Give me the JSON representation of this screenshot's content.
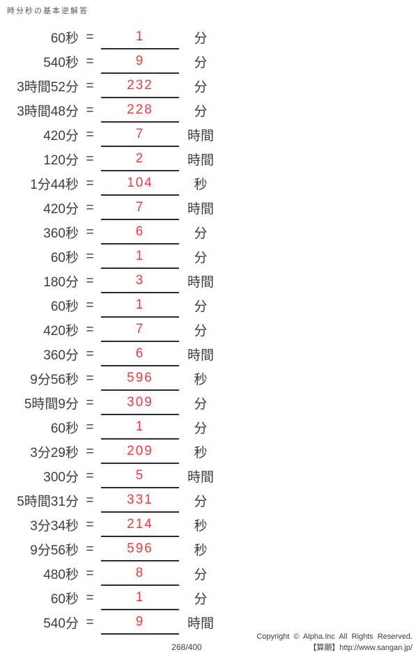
{
  "title": "時分秒の基本逆解答",
  "equals": "=",
  "problems": [
    {
      "q": "60秒",
      "a": "1",
      "u": "分"
    },
    {
      "q": "540秒",
      "a": "9",
      "u": "分"
    },
    {
      "q": "3時間52分",
      "a": "232",
      "u": "分"
    },
    {
      "q": "3時間48分",
      "a": "228",
      "u": "分"
    },
    {
      "q": "420分",
      "a": "7",
      "u": "時間"
    },
    {
      "q": "120分",
      "a": "2",
      "u": "時間"
    },
    {
      "q": "1分44秒",
      "a": "104",
      "u": "秒"
    },
    {
      "q": "420分",
      "a": "7",
      "u": "時間"
    },
    {
      "q": "360秒",
      "a": "6",
      "u": "分"
    },
    {
      "q": "60秒",
      "a": "1",
      "u": "分"
    },
    {
      "q": "180分",
      "a": "3",
      "u": "時間"
    },
    {
      "q": "60秒",
      "a": "1",
      "u": "分"
    },
    {
      "q": "420秒",
      "a": "7",
      "u": "分"
    },
    {
      "q": "360分",
      "a": "6",
      "u": "時間"
    },
    {
      "q": "9分56秒",
      "a": "596",
      "u": "秒"
    },
    {
      "q": "5時間9分",
      "a": "309",
      "u": "分"
    },
    {
      "q": "60秒",
      "a": "1",
      "u": "分"
    },
    {
      "q": "3分29秒",
      "a": "209",
      "u": "秒"
    },
    {
      "q": "300分",
      "a": "5",
      "u": "時間"
    },
    {
      "q": "5時間31分",
      "a": "331",
      "u": "分"
    },
    {
      "q": "3分34秒",
      "a": "214",
      "u": "秒"
    },
    {
      "q": "9分56秒",
      "a": "596",
      "u": "秒"
    },
    {
      "q": "480秒",
      "a": "8",
      "u": "分"
    },
    {
      "q": "60秒",
      "a": "1",
      "u": "分"
    },
    {
      "q": "540分",
      "a": "9",
      "u": "時間"
    }
  ],
  "footer": {
    "page_number": "268/400",
    "copyright": "Copyright © Alpha.Inc All Rights Reserved.",
    "site": "【算願】http://www.sangan.jp/"
  },
  "colors": {
    "answer_red": "#e83a3f",
    "text": "#423c38",
    "blank_line": "#2d2a28"
  }
}
